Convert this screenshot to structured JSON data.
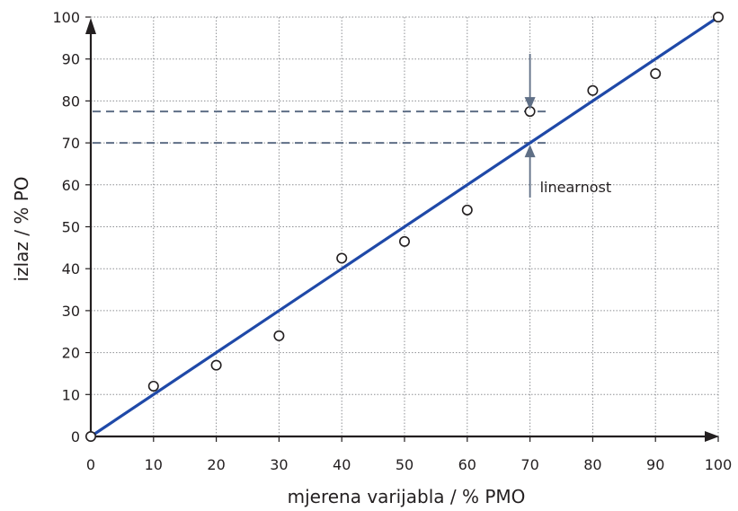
{
  "chart_data": {
    "type": "scatter",
    "xlabel": "mjerena varijabla / % PMO",
    "ylabel": "izlaz / % PO",
    "xlim": [
      0,
      100
    ],
    "ylim": [
      0,
      100
    ],
    "x_ticks": [
      "0",
      "10",
      "20",
      "30",
      "40",
      "50",
      "60",
      "70",
      "80",
      "90",
      "100"
    ],
    "y_ticks": [
      "0",
      "10",
      "20",
      "30",
      "40",
      "50",
      "60",
      "70",
      "80",
      "90",
      "100"
    ],
    "grid": true,
    "series": [
      {
        "kind": "scatter",
        "x": [
          0,
          10,
          20,
          30,
          40,
          50,
          60,
          70,
          80,
          90,
          100
        ],
        "y": [
          0,
          12,
          17,
          24,
          42.5,
          46.5,
          54,
          77.5,
          82.5,
          86.5,
          100
        ],
        "color": "#231f20"
      },
      {
        "kind": "line",
        "x": [
          0,
          100
        ],
        "y": [
          0,
          100
        ],
        "color": "#1f49a8"
      }
    ],
    "annotations": [
      {
        "text": "linearnost",
        "x": 70,
        "y_from": 70,
        "y_to": 77.5,
        "reference_lines_y": [
          70,
          77.5
        ],
        "color": "#5f6f86"
      }
    ]
  }
}
